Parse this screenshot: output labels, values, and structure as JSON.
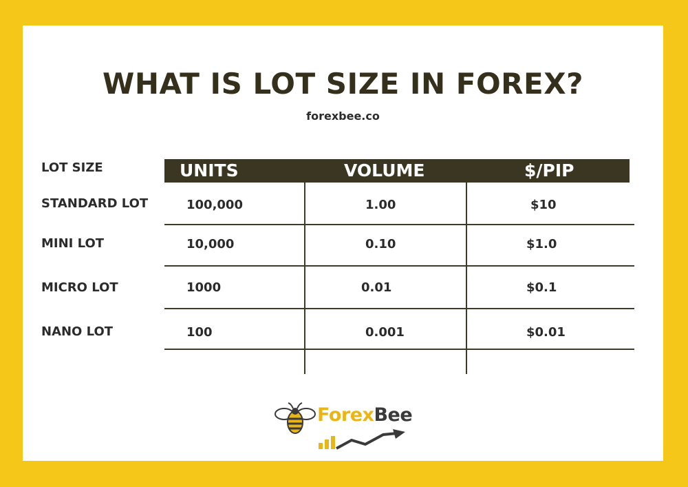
{
  "title": "WHAT IS LOT SIZE IN FOREX?",
  "subtitle": "forexbee.co",
  "table": {
    "row_header": "LOT SIZE",
    "columns": [
      "UNITS",
      "VOLUME",
      "$/PIP"
    ],
    "rows": [
      {
        "label": "STANDARD LOT",
        "units": "100,000",
        "volume": "1.00",
        "pip": "$10"
      },
      {
        "label": "MINI LOT",
        "units": "10,000",
        "volume": "0.10",
        "pip": "$1.0"
      },
      {
        "label": "MICRO LOT",
        "units": "1000",
        "volume": "0.01",
        "pip": "$0.1"
      },
      {
        "label": "NANO LOT",
        "units": "100",
        "volume": "0.001",
        "pip": "$0.01"
      }
    ]
  },
  "logo": {
    "part1": "Forex",
    "part2": "Bee",
    "icon": "bee-icon"
  },
  "colors": {
    "background": "#f5c718",
    "header": "#3a3621",
    "title": "#34301c",
    "brand_yellow": "#e9b61a",
    "brand_dark": "#3a3a3a"
  }
}
